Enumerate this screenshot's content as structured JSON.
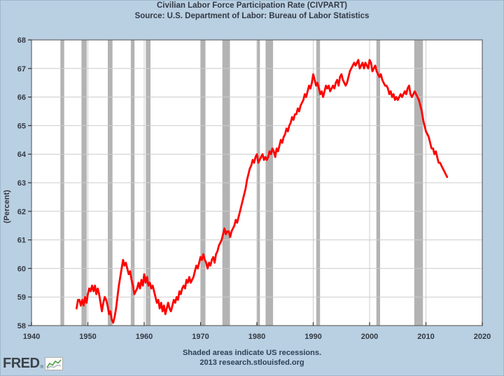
{
  "page": {
    "background": "#b9cfe2",
    "edge_color": "#9db8cc"
  },
  "logo": {
    "text": "FRED",
    "mark": "®"
  },
  "chart_data": {
    "type": "line",
    "title": "Civilian Labor Force Participation Rate (CIVPART)",
    "subtitle": "Source: U.S. Department of Labor: Bureau of Labor Statistics",
    "note": "Shaded areas indicate US recessions.",
    "attribution": "2013 research.stlouisfed.org",
    "ylabel": "(Percent)",
    "xlabel": "",
    "xlim": [
      1940,
      2020
    ],
    "ylim": [
      58,
      68
    ],
    "x_ticks": [
      1940,
      1950,
      1960,
      1970,
      1980,
      1990,
      2000,
      2010,
      2020
    ],
    "y_ticks": [
      58,
      59,
      60,
      61,
      62,
      63,
      64,
      65,
      66,
      67,
      68
    ],
    "grid": true,
    "legend": "none",
    "plot_bg": "#ffffff",
    "grid_color": "#cccccc",
    "frame_color": "#666666",
    "tick_color": "#333333",
    "line_color": "#ff0000",
    "recession_band_color": "#b3b3b3",
    "recessions": [
      {
        "start": 1945.13,
        "end": 1945.8
      },
      {
        "start": 1948.87,
        "end": 1949.8
      },
      {
        "start": 1953.54,
        "end": 1954.37
      },
      {
        "start": 1957.63,
        "end": 1958.29
      },
      {
        "start": 1960.29,
        "end": 1961.12
      },
      {
        "start": 1969.96,
        "end": 1970.87
      },
      {
        "start": 1973.87,
        "end": 1975.21
      },
      {
        "start": 1980.04,
        "end": 1980.54
      },
      {
        "start": 1981.54,
        "end": 1982.87
      },
      {
        "start": 1990.54,
        "end": 1991.21
      },
      {
        "start": 2001.21,
        "end": 2001.87
      },
      {
        "start": 2007.92,
        "end": 2009.46
      }
    ],
    "series": [
      {
        "name": "CIVPART",
        "x_start": 1948.0,
        "x_step": 0.25,
        "values": [
          58.6,
          58.9,
          58.9,
          58.7,
          58.9,
          58.7,
          59.0,
          58.8,
          59.1,
          59.3,
          59.2,
          59.4,
          59.2,
          59.4,
          59.1,
          59.3,
          59.1,
          58.8,
          58.5,
          58.8,
          59.0,
          58.9,
          58.7,
          58.4,
          58.5,
          58.2,
          58.1,
          58.3,
          58.6,
          59.0,
          59.4,
          59.7,
          60.0,
          60.3,
          60.1,
          60.2,
          60.0,
          59.8,
          59.9,
          59.6,
          59.4,
          59.1,
          59.2,
          59.3,
          59.5,
          59.3,
          59.6,
          59.4,
          59.8,
          59.5,
          59.7,
          59.4,
          59.5,
          59.3,
          59.4,
          59.2,
          59.0,
          58.8,
          58.9,
          58.6,
          58.8,
          58.5,
          58.7,
          58.4,
          58.6,
          58.8,
          58.6,
          58.5,
          58.7,
          58.9,
          58.8,
          59.0,
          58.9,
          59.2,
          59.1,
          59.3,
          59.4,
          59.3,
          59.6,
          59.5,
          59.7,
          59.5,
          59.6,
          59.7,
          59.9,
          60.1,
          60.0,
          60.2,
          60.4,
          60.3,
          60.5,
          60.3,
          60.2,
          60.0,
          60.2,
          60.1,
          60.3,
          60.4,
          60.2,
          60.5,
          60.6,
          60.8,
          60.9,
          61.0,
          61.2,
          61.4,
          61.2,
          61.3,
          61.3,
          61.1,
          61.3,
          61.4,
          61.5,
          61.7,
          61.6,
          61.8,
          62.0,
          62.2,
          62.4,
          62.6,
          62.8,
          63.1,
          63.3,
          63.5,
          63.6,
          63.8,
          63.7,
          63.9,
          64.0,
          63.7,
          63.8,
          63.9,
          64.0,
          63.8,
          63.9,
          63.8,
          63.9,
          64.1,
          64.0,
          64.2,
          64.1,
          63.9,
          64.2,
          64.1,
          64.3,
          64.5,
          64.4,
          64.6,
          64.7,
          64.9,
          64.8,
          65.0,
          65.1,
          65.3,
          65.2,
          65.4,
          65.4,
          65.6,
          65.5,
          65.7,
          65.8,
          65.9,
          66.1,
          66.0,
          66.2,
          66.4,
          66.3,
          66.5,
          66.8,
          66.6,
          66.4,
          66.5,
          66.3,
          66.1,
          66.2,
          66.0,
          66.2,
          66.4,
          66.3,
          66.4,
          66.2,
          66.3,
          66.4,
          66.3,
          66.5,
          66.6,
          66.4,
          66.7,
          66.8,
          66.6,
          66.5,
          66.4,
          66.5,
          66.7,
          66.9,
          67.0,
          67.1,
          67.2,
          67.1,
          67.2,
          67.3,
          67.0,
          67.1,
          67.2,
          67.0,
          67.2,
          67.1,
          67.0,
          67.3,
          67.2,
          66.9,
          67.0,
          67.1,
          66.9,
          66.8,
          66.7,
          66.8,
          66.6,
          66.5,
          66.4,
          66.4,
          66.3,
          66.1,
          66.2,
          66.0,
          66.1,
          65.9,
          66.0,
          65.9,
          66.0,
          66.1,
          66.0,
          66.1,
          66.2,
          66.1,
          66.3,
          66.4,
          66.1,
          66.0,
          66.1,
          66.2,
          66.1,
          66.0,
          65.9,
          65.7,
          65.5,
          65.2,
          65.0,
          64.8,
          64.7,
          64.6,
          64.4,
          64.2,
          64.2,
          64.0,
          64.1,
          63.9,
          63.7,
          63.7,
          63.6,
          63.5,
          63.4,
          63.3,
          63.2
        ]
      }
    ]
  }
}
